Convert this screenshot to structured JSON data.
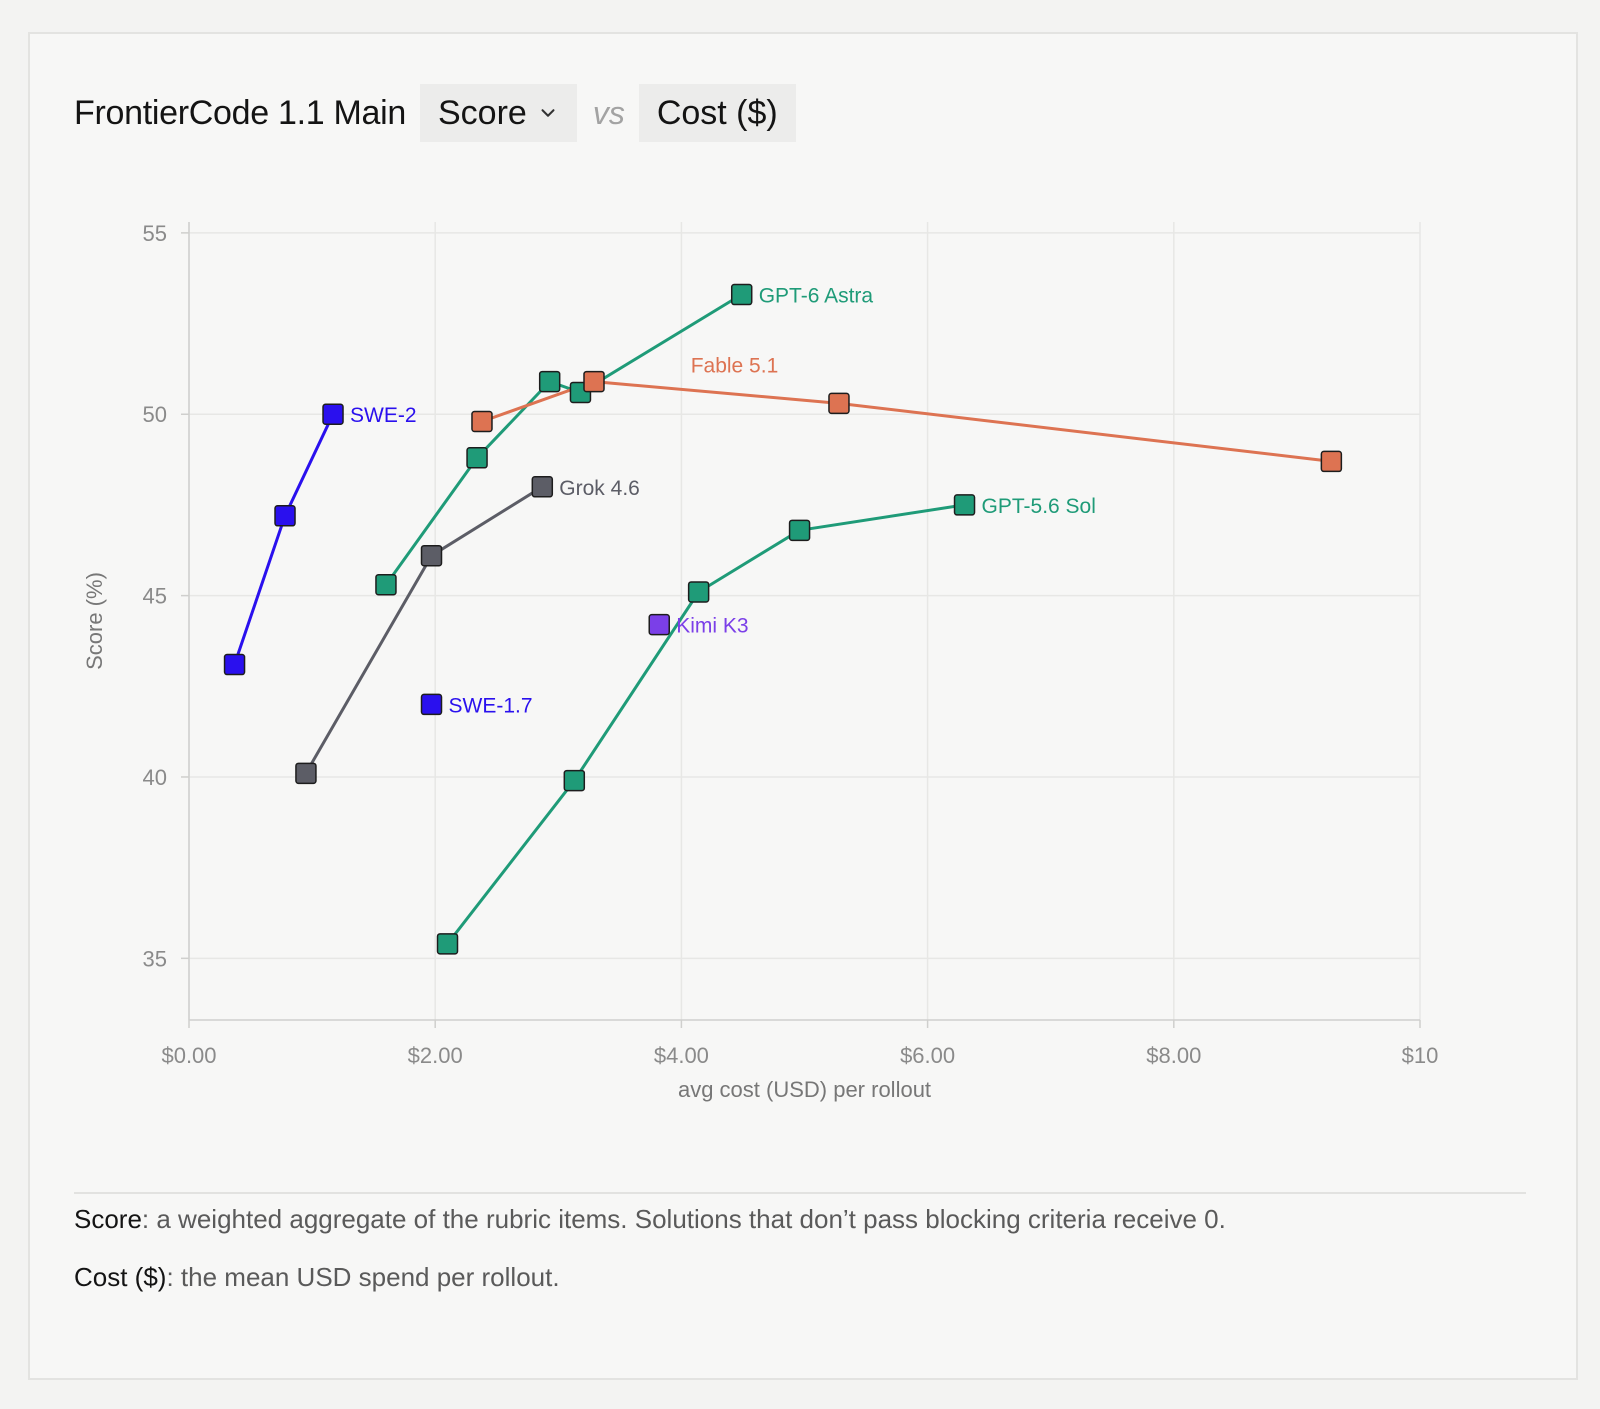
{
  "header": {
    "title": "FrontierCode 1.1 Main",
    "metric_selector": "Score",
    "vs": "vs",
    "compare_metric": "Cost ($)"
  },
  "chart_data": {
    "type": "line",
    "xlabel": "avg cost (USD) per rollout",
    "ylabel": "Score (%)",
    "xlim": [
      0,
      10
    ],
    "ylim": [
      33.3,
      55.3
    ],
    "x_ticks": [
      0,
      2,
      4,
      6,
      8,
      10
    ],
    "x_tick_labels": [
      "$0.00",
      "$2.00",
      "$4.00",
      "$6.00",
      "$8.00",
      "$10"
    ],
    "y_ticks": [
      35,
      40,
      45,
      50,
      55
    ],
    "y_tick_labels": [
      "35",
      "40",
      "45",
      "50",
      "55"
    ],
    "grid": true,
    "series": [
      {
        "name": "SWE-2",
        "color": "#2a10ee",
        "x": [
          0.37,
          0.78,
          1.17
        ],
        "y": [
          43.1,
          47.2,
          50.0
        ]
      },
      {
        "name": "SWE-1.7",
        "color": "#2a10ee",
        "x": [
          1.97
        ],
        "y": [
          42.0
        ]
      },
      {
        "name": "Grok 4.6",
        "color": "#5c5d66",
        "x": [
          0.95,
          1.97,
          2.87
        ],
        "y": [
          40.1,
          46.1,
          48.0
        ]
      },
      {
        "name": "GPT-6 Astra",
        "color": "#1f9b78",
        "x": [
          1.6,
          2.34,
          2.93,
          3.18,
          4.49
        ],
        "y": [
          45.3,
          48.8,
          50.9,
          50.6,
          53.3
        ]
      },
      {
        "name": "Fable 5.1",
        "color": "#dd7352",
        "x": [
          2.38,
          3.29,
          5.28,
          9.28
        ],
        "y": [
          49.8,
          50.9,
          50.3,
          48.7
        ]
      },
      {
        "name": "GPT-5.6 Sol",
        "color": "#1f9b78",
        "x": [
          2.1,
          3.13,
          4.14,
          4.96,
          6.3
        ],
        "y": [
          35.4,
          39.9,
          45.1,
          46.8,
          47.5
        ]
      },
      {
        "name": "Kimi K3",
        "color": "#7b3fe8",
        "x": [
          3.82
        ],
        "y": [
          44.2
        ]
      }
    ]
  },
  "definitions": {
    "score_term": "Score",
    "score_text": ": a weighted aggregate of the rubric items. Solutions that don’t pass blocking criteria receive 0.",
    "cost_term": "Cost ($)",
    "cost_text": ": the mean USD spend per rollout."
  }
}
